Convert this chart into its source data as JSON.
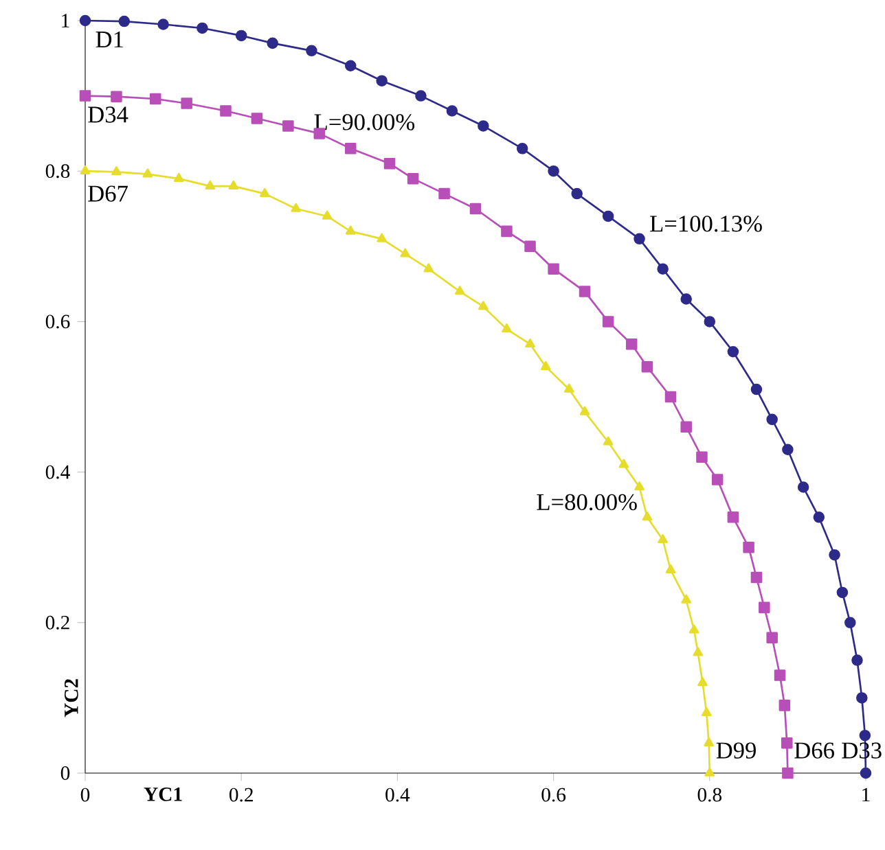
{
  "chart_data": {
    "type": "line",
    "xlabel": "YC1",
    "ylabel": "YC2",
    "xlim": [
      0,
      1
    ],
    "ylim": [
      0,
      1
    ],
    "xticks": [
      0,
      0.2,
      0.4,
      0.6,
      0.8,
      1
    ],
    "yticks": [
      0,
      0.2,
      0.4,
      0.6,
      0.8,
      1
    ],
    "grid": false,
    "series": [
      {
        "color": "#2e2a8a",
        "marker": "circle",
        "x": [
          0,
          0.05,
          0.1,
          0.15,
          0.2,
          0.24,
          0.29,
          0.34,
          0.38,
          0.43,
          0.47,
          0.51,
          0.56,
          0.6,
          0.63,
          0.67,
          0.71,
          0.74,
          0.77,
          0.8,
          0.83,
          0.86,
          0.88,
          0.9,
          0.92,
          0.94,
          0.96,
          0.97,
          0.98,
          0.989,
          0.995,
          0.999,
          1.0
        ],
        "values": [
          1.0,
          0.999,
          0.995,
          0.99,
          0.98,
          0.97,
          0.96,
          0.94,
          0.92,
          0.9,
          0.88,
          0.86,
          0.83,
          0.8,
          0.77,
          0.74,
          0.71,
          0.67,
          0.63,
          0.6,
          0.56,
          0.51,
          0.47,
          0.43,
          0.38,
          0.34,
          0.29,
          0.24,
          0.2,
          0.15,
          0.1,
          0.05,
          0
        ]
      },
      {
        "color": "#b84fb8",
        "marker": "square",
        "x": [
          0,
          0.04,
          0.09,
          0.13,
          0.18,
          0.22,
          0.26,
          0.3,
          0.34,
          0.39,
          0.42,
          0.46,
          0.5,
          0.54,
          0.57,
          0.6,
          0.64,
          0.67,
          0.7,
          0.72,
          0.75,
          0.77,
          0.79,
          0.81,
          0.83,
          0.85,
          0.86,
          0.87,
          0.88,
          0.89,
          0.896,
          0.899,
          0.9
        ],
        "values": [
          0.9,
          0.899,
          0.896,
          0.89,
          0.88,
          0.87,
          0.86,
          0.85,
          0.83,
          0.81,
          0.79,
          0.77,
          0.75,
          0.72,
          0.7,
          0.67,
          0.64,
          0.6,
          0.57,
          0.54,
          0.5,
          0.46,
          0.42,
          0.39,
          0.34,
          0.3,
          0.26,
          0.22,
          0.18,
          0.13,
          0.09,
          0.04,
          0
        ]
      },
      {
        "color": "#e6dc2c",
        "marker": "triangle",
        "x": [
          0,
          0.04,
          0.08,
          0.12,
          0.16,
          0.19,
          0.23,
          0.27,
          0.31,
          0.34,
          0.38,
          0.41,
          0.44,
          0.48,
          0.51,
          0.54,
          0.57,
          0.59,
          0.62,
          0.64,
          0.67,
          0.69,
          0.71,
          0.72,
          0.74,
          0.75,
          0.77,
          0.78,
          0.785,
          0.791,
          0.796,
          0.799,
          0.8
        ],
        "values": [
          0.8,
          0.799,
          0.796,
          0.79,
          0.78,
          0.78,
          0.77,
          0.75,
          0.74,
          0.72,
          0.71,
          0.69,
          0.67,
          0.64,
          0.62,
          0.59,
          0.57,
          0.54,
          0.51,
          0.48,
          0.44,
          0.41,
          0.38,
          0.34,
          0.31,
          0.27,
          0.23,
          0.19,
          0.16,
          0.12,
          0.08,
          0.04,
          0
        ]
      }
    ],
    "annotations": [
      "D1",
      "D34",
      "D67",
      "L=100.13%",
      "L=90.00%",
      "L=80.00%",
      "D99",
      "D66",
      "D33"
    ]
  }
}
